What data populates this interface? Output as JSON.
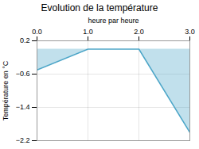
{
  "chart_data": {
    "type": "area",
    "title": "Evolution de la température",
    "xlabel": "heure par heure",
    "ylabel": "Température en °C",
    "x": [
      0,
      1,
      2,
      3
    ],
    "values": [
      -0.5,
      0.0,
      0.0,
      -2.0
    ],
    "color": "#4da6c8",
    "xlim": [
      0,
      3
    ],
    "ylim": [
      -2.2,
      0.2
    ],
    "xticks": [
      0,
      1,
      2,
      3
    ],
    "yticks": [
      0.2,
      -0.6,
      -1.4,
      -2.2
    ],
    "grid": true
  }
}
